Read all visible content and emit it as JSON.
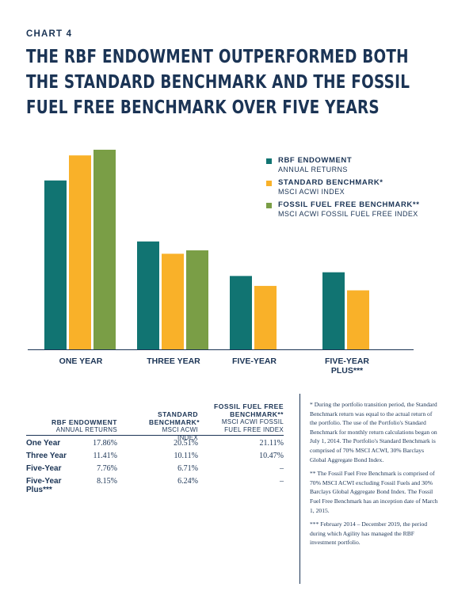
{
  "header": {
    "label": "CHART 4",
    "title": "THE RBF ENDOWMENT OUTPERFORMED BOTH THE STANDARD BENCHMARK AND THE FOSSIL FUEL FREE BENCHMARK OVER FIVE YEARS"
  },
  "colors": {
    "rbf": "#117472",
    "standard": "#f9b129",
    "fossil": "#7a9e46",
    "text": "#1b3455"
  },
  "legend": [
    {
      "name": "RBF ENDOWMENT",
      "sub": "ANNUAL RETURNS",
      "color": "#117472"
    },
    {
      "name": "STANDARD BENCHMARK*",
      "sub": "MSCI ACWI INDEX",
      "color": "#f9b129"
    },
    {
      "name": "FOSSIL FUEL FREE BENCHMARK**",
      "sub": "MSCI ACWI FOSSIL FUEL FREE INDEX",
      "color": "#7a9e46"
    }
  ],
  "chart_data": {
    "type": "bar",
    "categories": [
      "ONE YEAR",
      "THREE YEAR",
      "FIVE-YEAR",
      "FIVE-YEAR PLUS***"
    ],
    "series": [
      {
        "name": "RBF ENDOWMENT",
        "values": [
          17.86,
          11.41,
          7.76,
          8.15
        ]
      },
      {
        "name": "STANDARD BENCHMARK*",
        "values": [
          20.51,
          10.11,
          6.71,
          6.24
        ]
      },
      {
        "name": "FOSSIL FUEL FREE BENCHMARK**",
        "values": [
          21.11,
          10.47,
          null,
          null
        ]
      }
    ],
    "ylim": [
      0,
      21.11
    ],
    "grid": false,
    "legend_position": "top-right"
  },
  "table": {
    "headers": [
      {
        "name": "RBF ENDOWMENT",
        "sub": "ANNUAL RETURNS"
      },
      {
        "name": "STANDARD BENCHMARK*",
        "sub": "MSCI ACWI INDEX"
      },
      {
        "name": "FOSSIL FUEL FREE BENCHMARK**",
        "sub": "MSCI ACWI FOSSIL FUEL FREE INDEX"
      }
    ],
    "rows": [
      {
        "label": "One Year",
        "values": [
          "17.86%",
          "20.51%",
          "21.11%"
        ]
      },
      {
        "label": "Three Year",
        "values": [
          "11.41%",
          "10.11%",
          "10.47%"
        ]
      },
      {
        "label": "Five-Year",
        "values": [
          "7.76%",
          "6.71%",
          "–"
        ]
      },
      {
        "label": "Five-Year Plus***",
        "values": [
          "8.15%",
          "6.24%",
          "–"
        ]
      }
    ]
  },
  "notes": [
    "* During the portfolio transition period, the Standard Benchmark return was equal to the actual return of the portfolio. The use of the Portfolio's Standard Benchmark for monthly return calculations began on July 1, 2014. The Portfolio's Standard Benchmark is comprised of 70% MSCI ACWI, 30% Barclays Global Aggregate Bond Index.",
    "** The Fossil Fuel Free Benchmark is comprised of 70% MSCI ACWI excluding Fossil Fuels and 30% Barclays Global Aggregate Bond Index. The Fossil Fuel Free Benchmark has an inception date of March 1, 2015.",
    "*** February 2014 – December 2019, the period during which Agility has managed the RBF investment portfolio."
  ]
}
